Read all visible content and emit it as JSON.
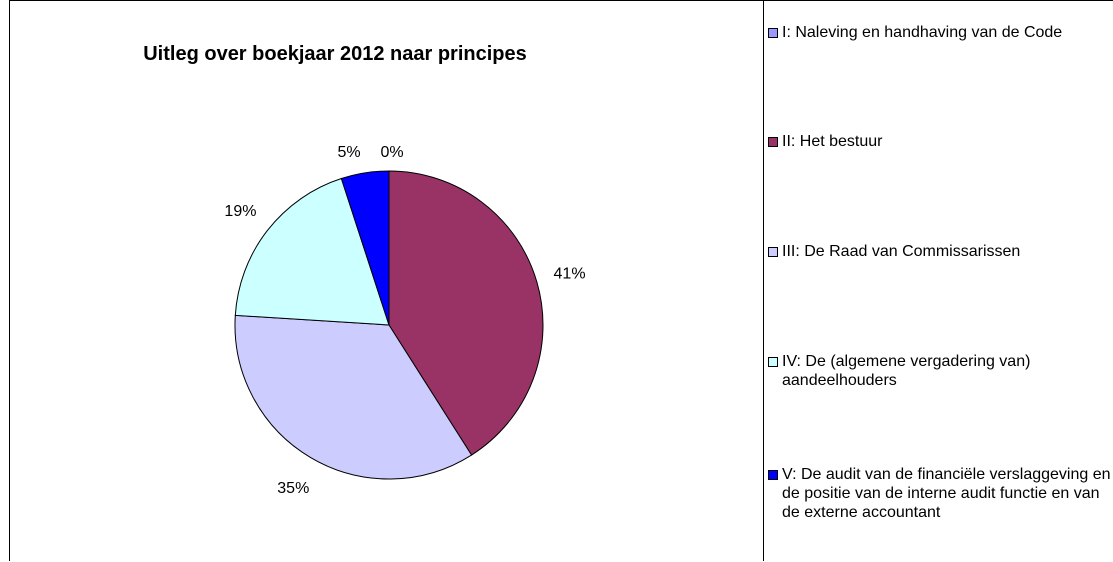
{
  "chart_data": {
    "type": "pie",
    "title": "Uitleg over boekjaar 2012 naar principes",
    "slices": [
      {
        "name": "I: Naleving en handhaving van de Code",
        "value": 0,
        "label": "0%",
        "color": "#9999ff"
      },
      {
        "name": "II: Het bestuur",
        "value": 41,
        "label": "41%",
        "color": "#993366"
      },
      {
        "name": "III: De Raad van Commissarissen",
        "value": 35,
        "label": "35%",
        "color": "#ccccff"
      },
      {
        "name": "IV: De (algemene vergadering van) aandeelhouders",
        "value": 19,
        "label": "19%",
        "color": "#ccffff"
      },
      {
        "name": "V: De audit van de financiële verslaggeving en de positie van de interne audit functie en van de externe accountant",
        "value": 5,
        "label": "5%",
        "color": "#0000ff"
      }
    ],
    "legend_position": "right"
  }
}
